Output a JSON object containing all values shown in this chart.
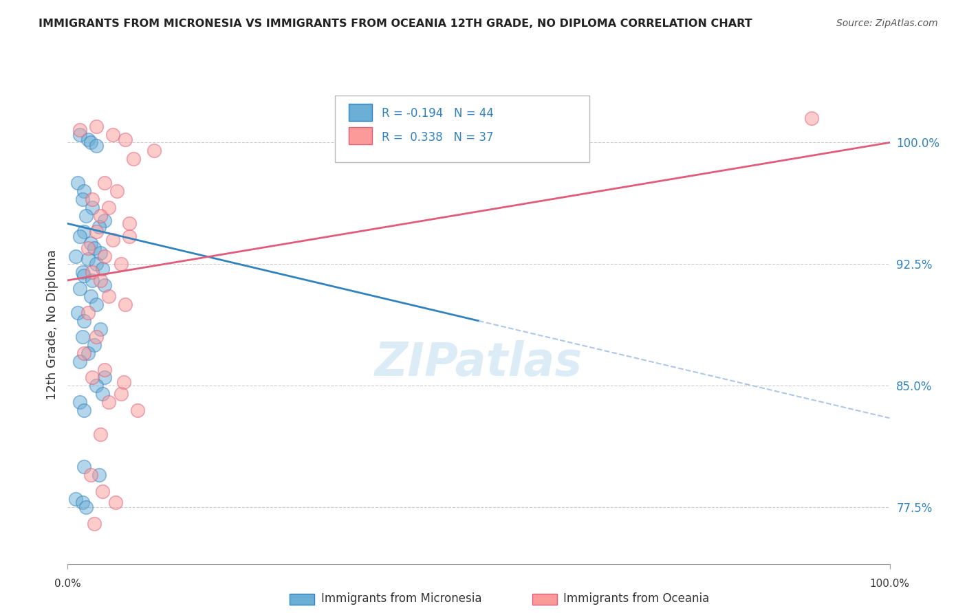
{
  "title": "IMMIGRANTS FROM MICRONESIA VS IMMIGRANTS FROM OCEANIA 12TH GRADE, NO DIPLOMA CORRELATION CHART",
  "source": "Source: ZipAtlas.com",
  "ylabel": "12th Grade, No Diploma",
  "xlim": [
    0.0,
    100.0
  ],
  "ylim": [
    74.0,
    103.5
  ],
  "yticks": [
    77.5,
    85.0,
    92.5,
    100.0
  ],
  "ytick_labels": [
    "77.5%",
    "85.0%",
    "92.5%",
    "100.0%"
  ],
  "blue_color": "#6baed6",
  "pink_color": "#fb9a99",
  "blue_line_color": "#3182bd",
  "pink_line_color": "#e05c7a",
  "dashed_line_color": "#aec7e8",
  "blue_scatter": {
    "x": [
      1.5,
      2.5,
      2.8,
      3.5,
      1.2,
      2.0,
      1.8,
      3.0,
      2.2,
      4.5,
      3.8,
      2.0,
      1.5,
      2.8,
      3.2,
      4.0,
      1.0,
      2.5,
      3.5,
      4.2,
      1.8,
      2.0,
      3.0,
      4.5,
      1.5,
      2.8,
      3.5,
      1.2,
      2.0,
      4.0,
      1.8,
      3.2,
      2.5,
      1.5,
      2.0,
      3.8,
      4.5,
      1.0,
      1.8,
      2.2,
      3.5,
      4.2,
      1.5,
      2.0
    ],
    "y": [
      100.5,
      100.2,
      100.0,
      99.8,
      97.5,
      97.0,
      96.5,
      96.0,
      95.5,
      95.2,
      94.8,
      94.5,
      94.2,
      93.8,
      93.5,
      93.2,
      93.0,
      92.8,
      92.5,
      92.2,
      92.0,
      91.8,
      91.5,
      91.2,
      91.0,
      90.5,
      90.0,
      89.5,
      89.0,
      88.5,
      88.0,
      87.5,
      87.0,
      86.5,
      80.0,
      79.5,
      85.5,
      78.0,
      77.8,
      77.5,
      85.0,
      84.5,
      84.0,
      83.5
    ]
  },
  "pink_scatter": {
    "x": [
      3.5,
      1.5,
      5.5,
      7.0,
      10.5,
      8.0,
      4.5,
      6.0,
      3.0,
      5.0,
      4.0,
      7.5,
      3.5,
      5.5,
      2.5,
      4.5,
      6.5,
      3.0,
      4.0,
      5.0,
      7.0,
      2.5,
      3.5,
      90.5,
      2.0,
      4.5,
      3.0,
      6.5,
      5.0,
      8.5,
      2.8,
      4.2,
      5.8,
      3.2,
      6.8,
      4.0,
      7.5
    ],
    "y": [
      101.0,
      100.8,
      100.5,
      100.2,
      99.5,
      99.0,
      97.5,
      97.0,
      96.5,
      96.0,
      95.5,
      95.0,
      94.5,
      94.0,
      93.5,
      93.0,
      92.5,
      92.0,
      91.5,
      90.5,
      90.0,
      89.5,
      88.0,
      101.5,
      87.0,
      86.0,
      85.5,
      84.5,
      84.0,
      83.5,
      79.5,
      78.5,
      77.8,
      76.5,
      85.2,
      82.0,
      94.2
    ]
  },
  "blue_line_intercept": 95.0,
  "blue_line_slope": -0.12,
  "blue_line_solid_end": 50,
  "pink_line_intercept": 91.5,
  "pink_line_slope": 0.085,
  "watermark": "ZIPatlas",
  "legend_r1": "R = -0.194",
  "legend_n1": "N = 44",
  "legend_r2": "R =  0.338",
  "legend_n2": "N = 37"
}
